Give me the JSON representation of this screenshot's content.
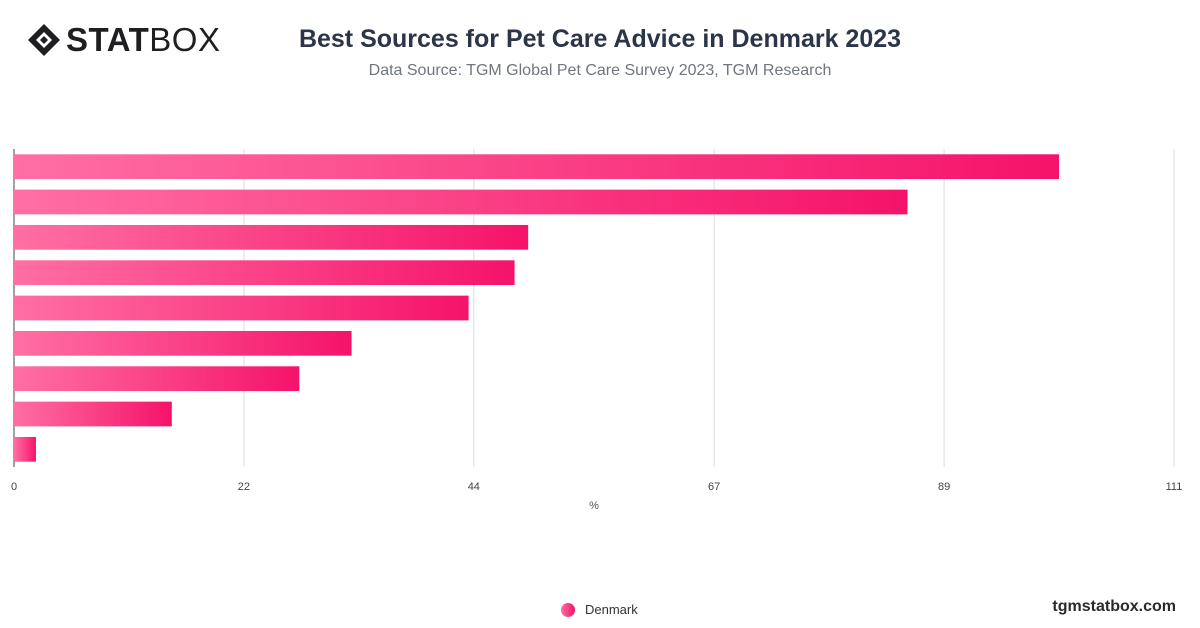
{
  "logo": {
    "bold_text": "STAT",
    "light_text": "BOX",
    "icon": "statbox-diamond-icon"
  },
  "header": {
    "title": "Best Sources for Pet Care Advice in Denmark 2023",
    "subtitle": "Data Source: TGM Global Pet Care Survey 2023, TGM Research"
  },
  "footer": {
    "brand": "tgmstatbox.com"
  },
  "colors": {
    "bar_start": "#ff6fa3",
    "bar_end": "#f5136a",
    "grid": "#dddddd",
    "text": "#333333"
  },
  "chart_data": {
    "type": "bar",
    "orientation": "horizontal",
    "title": "Best Sources for Pet Care Advice in Denmark 2023",
    "xlabel": "%",
    "ylabel": "",
    "xlim": [
      0,
      111
    ],
    "xticks": [
      0,
      22,
      44,
      67,
      89,
      111
    ],
    "grid": true,
    "legend_position": "bottom",
    "series": [
      {
        "name": "Denmark",
        "values": [
          100,
          85.5,
          49.2,
          47.9,
          43.5,
          32.3,
          27.3,
          15.1,
          2.1
        ]
      }
    ]
  }
}
